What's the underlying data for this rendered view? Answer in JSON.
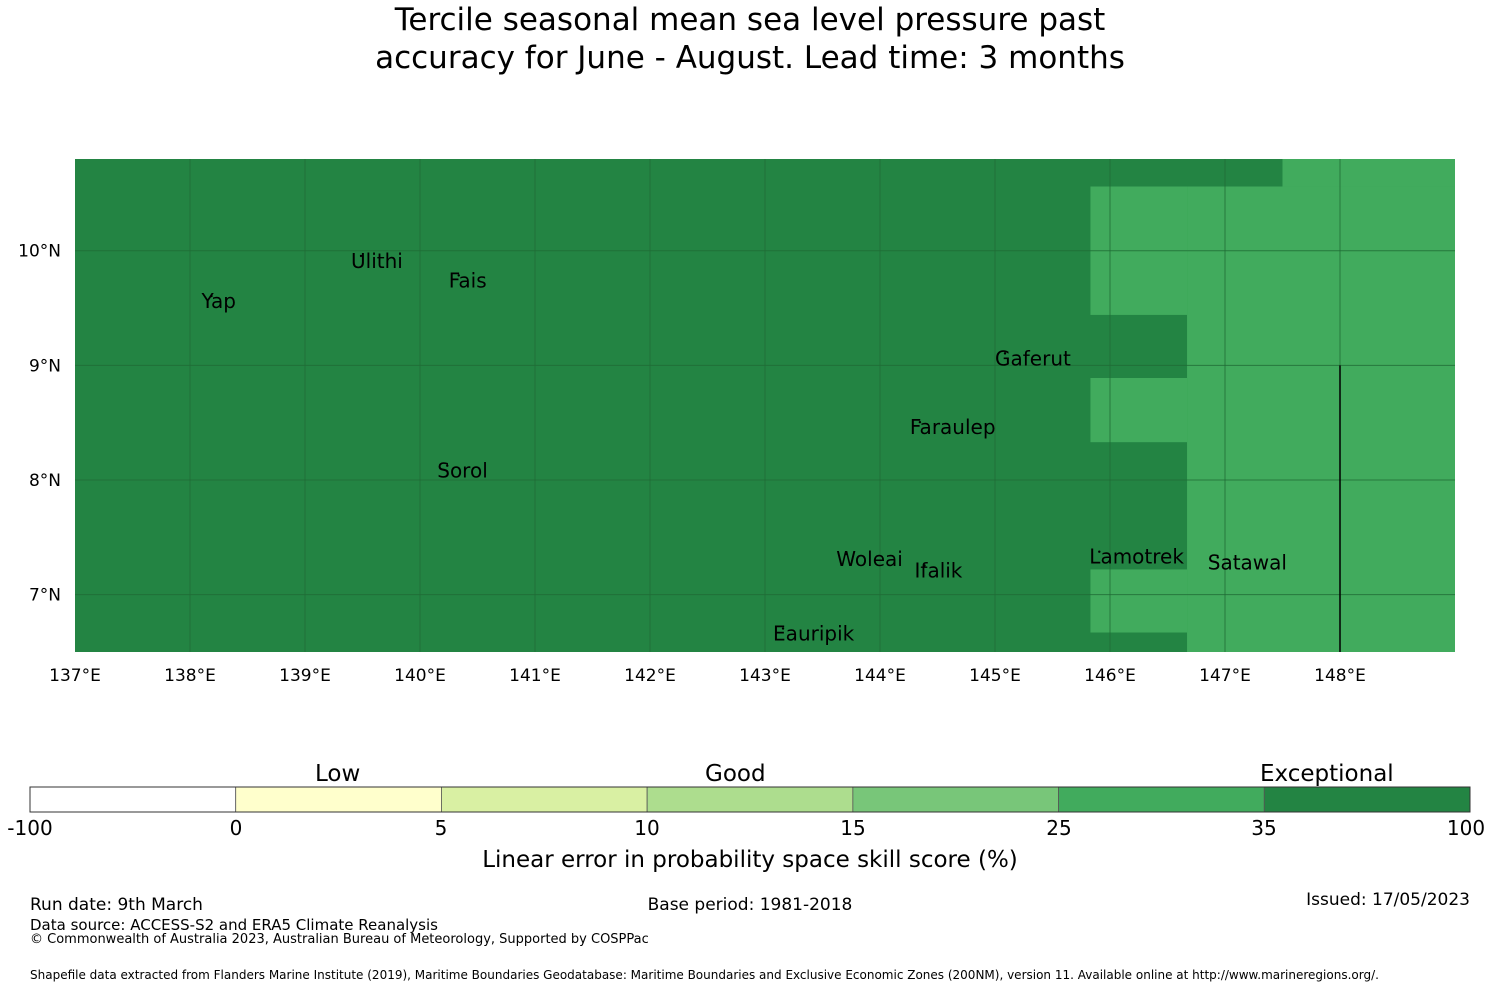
{
  "title": {
    "line1": "Tercile seasonal mean sea level pressure past",
    "line2": "accuracy for June - August. Lead time: 3 months"
  },
  "map": {
    "lon_range": [
      137,
      149
    ],
    "lat_range": [
      6.5,
      10.8
    ],
    "lon_ticks": [
      137,
      138,
      139,
      140,
      141,
      142,
      143,
      144,
      145,
      146,
      147,
      148
    ],
    "lon_tick_labels": [
      "137°E",
      "138°E",
      "139°E",
      "140°E",
      "141°E",
      "142°E",
      "143°E",
      "144°E",
      "145°E",
      "146°E",
      "147°E",
      "148°E"
    ],
    "lat_ticks": [
      7,
      8,
      9,
      10
    ],
    "lat_tick_labels": [
      "7°N",
      "8°N",
      "9°N",
      "10°N"
    ],
    "base_color": "#238443",
    "gridline_color": "#1f6b36",
    "skill_regions": [
      {
        "category": "25 to 35",
        "color": "#41ab5d",
        "lon": [
          146.67,
          149
        ],
        "lat": [
          6.5,
          10.56
        ]
      },
      {
        "category": "25 to 35",
        "color": "#41ab5d",
        "lon": [
          145.83,
          146.67
        ],
        "lat": [
          9.44,
          10.56
        ]
      },
      {
        "category": "25 to 35",
        "color": "#41ab5d",
        "lon": [
          145.83,
          146.67
        ],
        "lat": [
          8.33,
          8.89
        ]
      },
      {
        "category": "25 to 35",
        "color": "#41ab5d",
        "lon": [
          145.83,
          146.67
        ],
        "lat": [
          6.67,
          7.22
        ]
      },
      {
        "category": "25 to 35",
        "color": "#41ab5d",
        "lon": [
          147.5,
          149
        ],
        "lat": [
          10.56,
          10.8
        ]
      }
    ],
    "places": [
      {
        "name": "Yap",
        "lon": 138.1,
        "lat": 9.5
      },
      {
        "name": "Ulithi",
        "lon": 139.4,
        "lat": 9.85
      },
      {
        "name": "Fais",
        "lon": 140.25,
        "lat": 9.68
      },
      {
        "name": "Gaferut",
        "lon": 145.0,
        "lat": 9.0
      },
      {
        "name": "Faraulep",
        "lon": 144.26,
        "lat": 8.4
      },
      {
        "name": "Sorol",
        "lon": 140.15,
        "lat": 8.02
      },
      {
        "name": "Woleai",
        "lon": 143.62,
        "lat": 7.25
      },
      {
        "name": "Ifalik",
        "lon": 144.3,
        "lat": 7.15
      },
      {
        "name": "Lamotrek",
        "lon": 145.82,
        "lat": 7.27
      },
      {
        "name": "Satawal",
        "lon": 146.85,
        "lat": 7.22
      },
      {
        "name": "Eauripik",
        "lon": 143.07,
        "lat": 6.6
      }
    ]
  },
  "colorbar": {
    "categories": [
      "Low",
      "Good",
      "Exceptional"
    ],
    "bins": [
      {
        "from": "-100",
        "to": "0",
        "color": "#ffffff"
      },
      {
        "from": "0",
        "to": "5",
        "color": "#ffffcc"
      },
      {
        "from": "5",
        "to": "10",
        "color": "#d9f0a3"
      },
      {
        "from": "10",
        "to": "15",
        "color": "#addd8e"
      },
      {
        "from": "15",
        "to": "25",
        "color": "#78c679"
      },
      {
        "from": "25",
        "to": "35",
        "color": "#41ab5d"
      },
      {
        "from": "35",
        "to": "100",
        "color": "#238443"
      }
    ],
    "tick_labels": [
      "-100",
      "0",
      "5",
      "10",
      "15",
      "25",
      "35",
      "100"
    ],
    "label": "Linear error in probability space skill score (%)"
  },
  "footer": {
    "run_date": "Run date: 9th March",
    "base_period": "Base period: 1981-2018",
    "issued": "Issued: 17/05/2023",
    "data_source": "Data source: ACCESS-S2 and ERA5 Climate Reanalysis",
    "copyright": "© Commonwealth of Australia 2023, Australian Bureau of Meteorology, Supported by COSPPac",
    "shapefile": "Shapefile data extracted from Flanders Marine Institute (2019), Maritime Boundaries Geodatabase: Maritime Boundaries and Exclusive Economic Zones (200NM), version 11. Available online at http://www.marineregions.org/."
  }
}
